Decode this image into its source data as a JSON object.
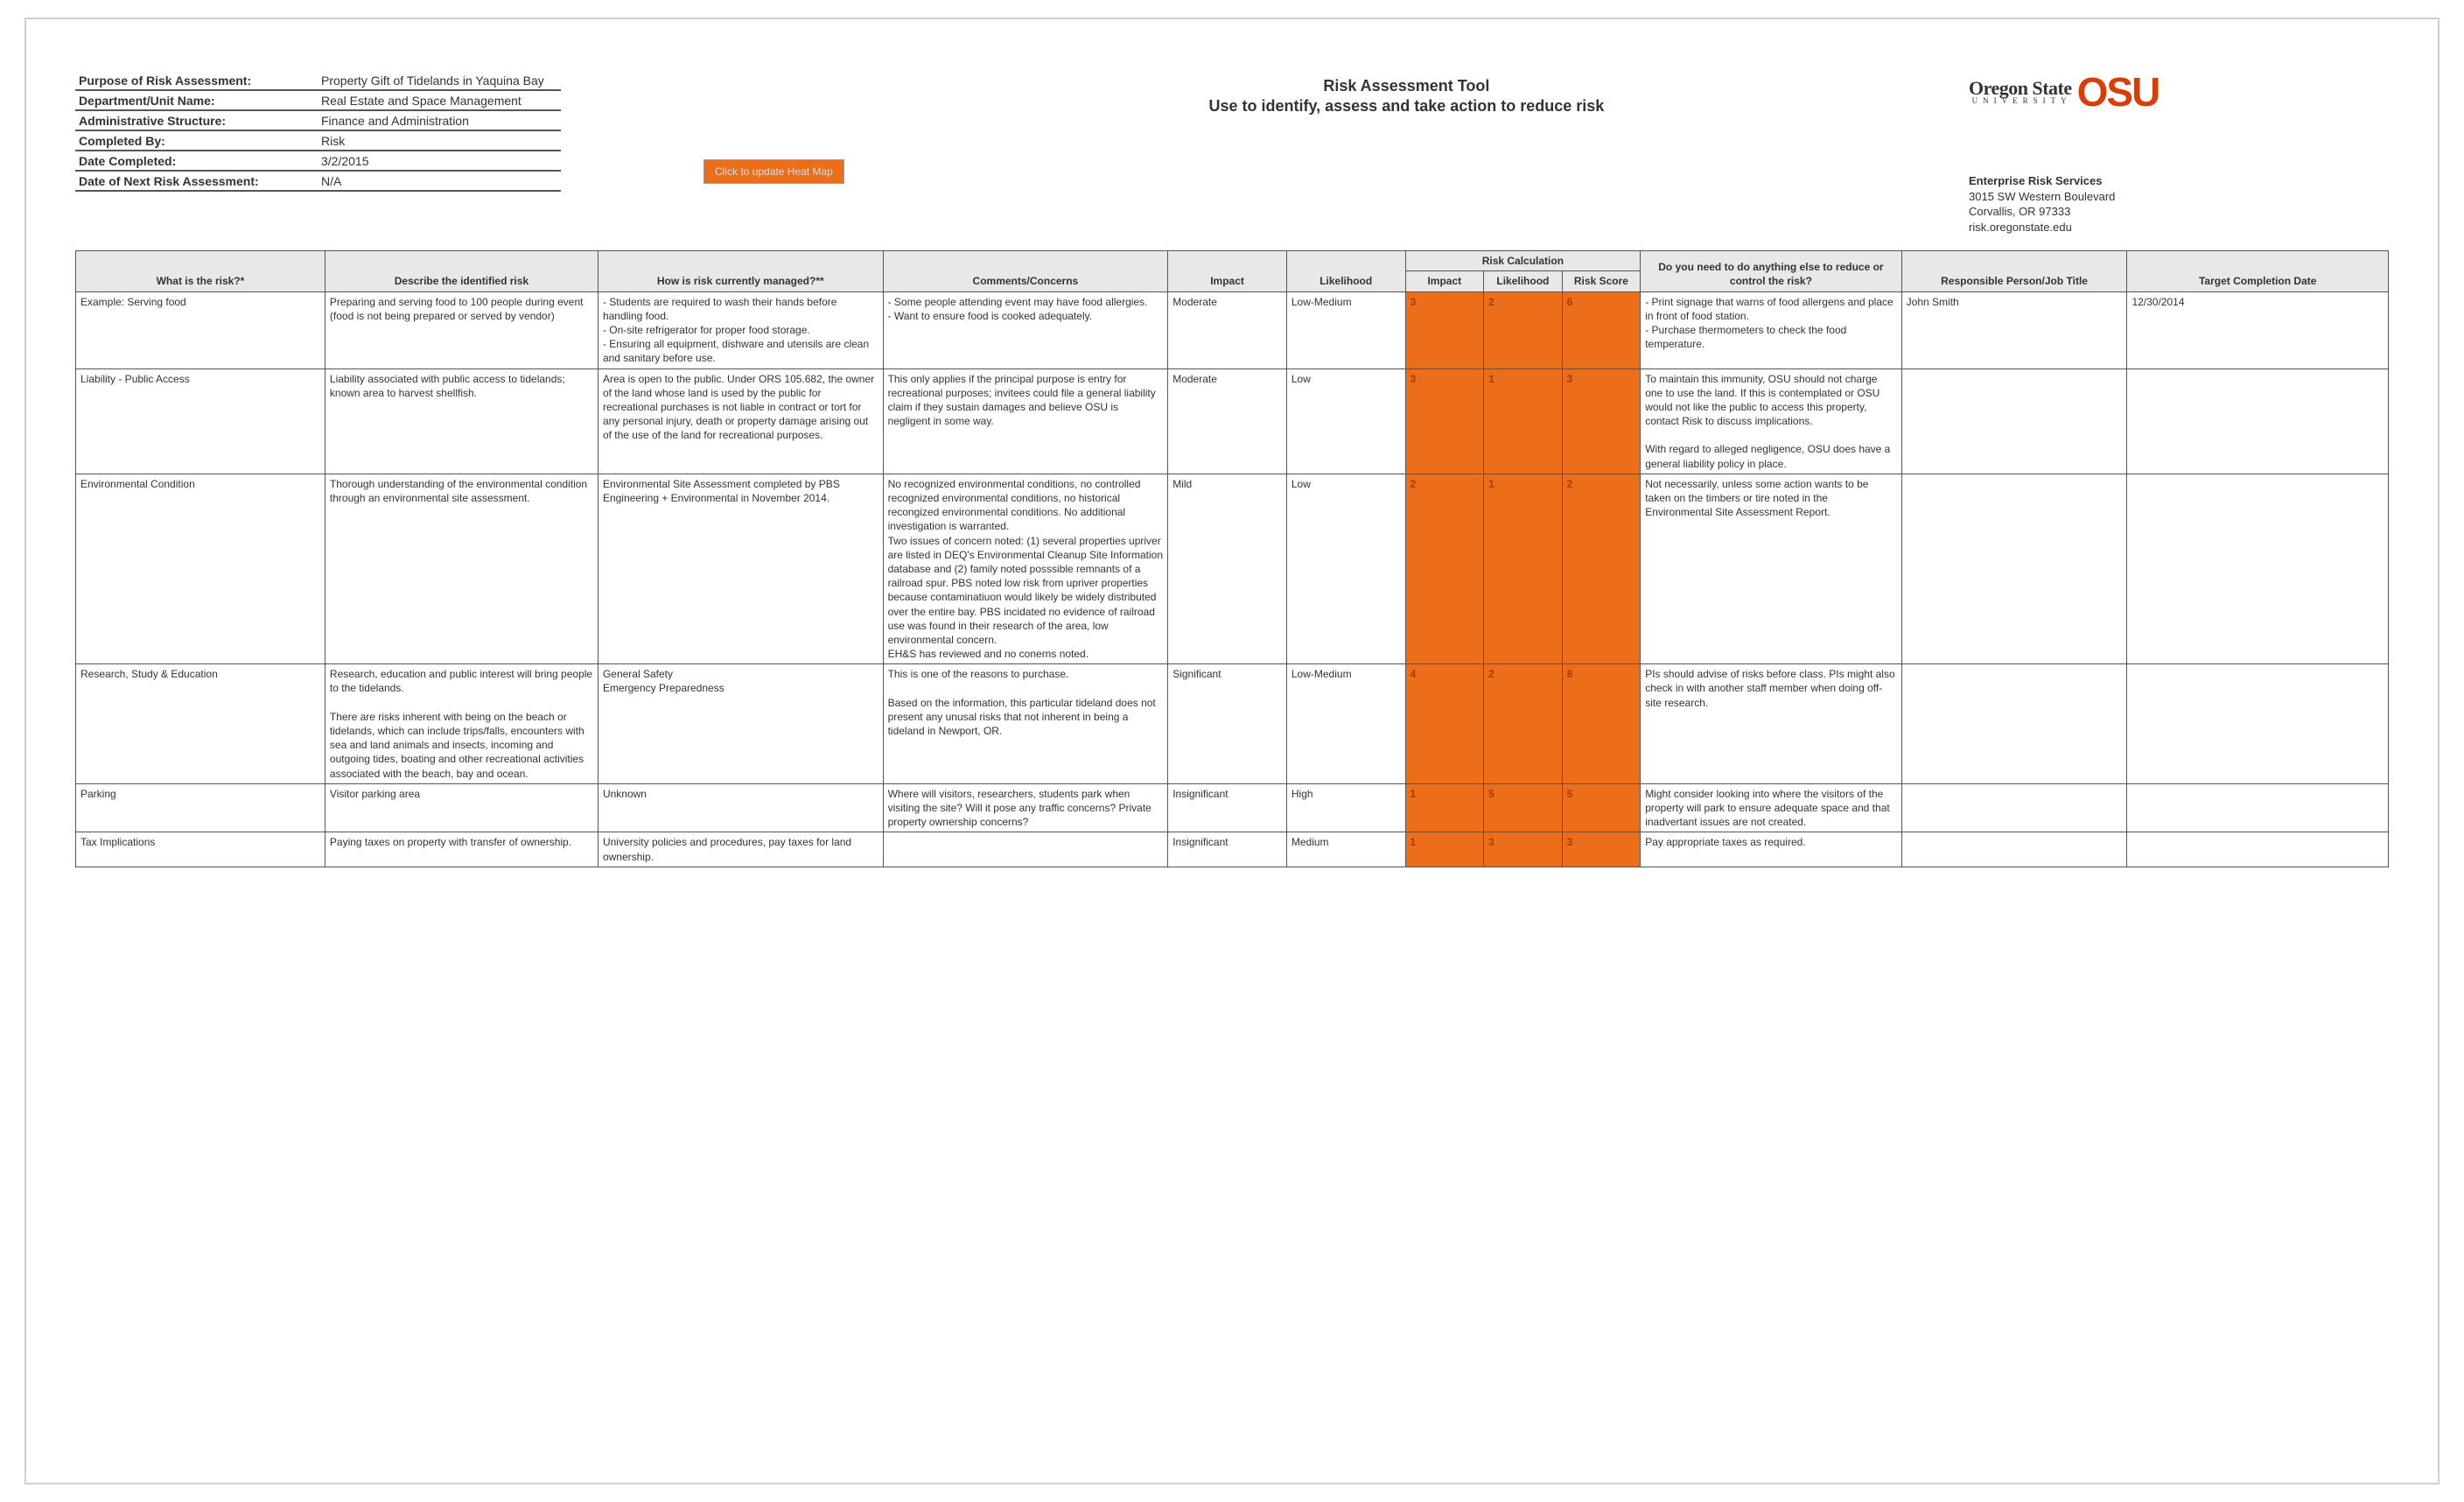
{
  "title": "Risk Assessment Tool",
  "subtitle": "Use to identify, assess and take action to reduce risk",
  "logo": {
    "line1": "Oregon State",
    "line2": "UNIVERSITY",
    "mark": "OSU"
  },
  "org": {
    "name": "Enterprise Risk Services",
    "addr": "3015 SW Western Boulevard",
    "city": "Corvallis, OR 97333",
    "url": "risk.oregonstate.edu"
  },
  "meta": {
    "rows": [
      {
        "label": "Purpose of Risk Assessment:",
        "value": "Property Gift of Tidelands in Yaquina Bay"
      },
      {
        "label": "Department/Unit Name:",
        "value": "Real Estate and Space Management"
      },
      {
        "label": "Administrative Structure:",
        "value": "Finance and Administration"
      },
      {
        "label": "Completed By:",
        "value": "Risk"
      },
      {
        "label": "Date Completed:",
        "value": "3/2/2015"
      },
      {
        "label": "Date of Next Risk Assessment:",
        "value": "N/A"
      }
    ]
  },
  "button": "Click to update Heat Map",
  "headers": {
    "group": "Risk Calculation",
    "cols": {
      "risk": "What is the risk?*",
      "desc": "Describe the identified risk",
      "manage": "How is risk currently managed?**",
      "comments": "Comments/Concerns",
      "impact": "Impact",
      "likelihood": "Likelihood",
      "c_impact": "Impact",
      "c_like": "Likelihood",
      "c_score": "Risk Score",
      "action": "Do you need to do anything else to reduce or control the risk?",
      "resp": "Responsible Person/Job Title",
      "date": "Target Completion Date"
    }
  },
  "rows": [
    {
      "risk": "Example: Serving food",
      "desc": "Preparing and serving food to 100 people during event\n(food is not being prepared or served by vendor)",
      "manage": "- Students are required to wash their hands before handling food.\n- On-site refrigerator for proper food storage.\n- Ensuring all equipment, dishware and utensils are clean and sanitary before use.",
      "comments": "- Some people attending event may have food allergies.\n- Want to ensure food is cooked adequately.",
      "impact": "Moderate",
      "likelihood": "Low-Medium",
      "c_impact": "3",
      "c_like": "2",
      "c_score": "6",
      "action": "- Print signage that warns of food allergens and place in front of food station.\n- Purchase thermometers to check the food temperature.",
      "resp": "John Smith",
      "date": "12/30/2014"
    },
    {
      "risk": "Liability - Public Access",
      "desc": "Liability associated with public access to tidelands; known area to harvest shellfish.",
      "manage": "Area is open to the public. Under ORS 105.682, the owner of the land whose land is used by the public for recreational purchases is not liable in contract or tort for any personal injury, death or property damage arising out of the use of the land for recreational purposes.",
      "comments": "This only applies if the principal purpose is entry for recreational purposes; invitees could file a general liability claim if they sustain damages and believe OSU is negligent in some way.",
      "impact": "Moderate",
      "likelihood": "Low",
      "c_impact": "3",
      "c_like": "1",
      "c_score": "3",
      "action": "To maintain this immunity, OSU should not charge one to use the land.  If this is contemplated or OSU would not like the public to access this property, contact Risk to discuss implications.\n\nWith regard to alleged negligence, OSU does have a general liability policy in place.",
      "resp": "",
      "date": ""
    },
    {
      "risk": "Environmental Condition",
      "desc": "Thorough understanding of the environmental condition through an environmental site assessment.",
      "manage": "Environmental Site Assessment completed by PBS Engineering + Environmental in November 2014.",
      "comments": "No recognized environmental conditions, no controlled recognized environmental conditions, no historical recongized environmental conditions.  No additional investigation is warranted.\nTwo issues of concern noted: (1) several properties upriver are listed in DEQ's Environmental Cleanup Site Information database and (2) family noted posssible remnants of a railroad spur. PBS noted low risk from upriver properties because contaminatiuon would likely be widely distributed over the entire bay. PBS incidated no evidence of railroad use was found in their research of the area, low environmental concern.\nEH&S has reviewed and no conerns noted.",
      "impact": "Mild",
      "likelihood": "Low",
      "c_impact": "2",
      "c_like": "1",
      "c_score": "2",
      "action": "Not necessarily, unless some action wants to be taken on the timbers or tire noted in the Environmental Site Assessment Report.",
      "resp": "",
      "date": ""
    },
    {
      "risk": "Research, Study & Education",
      "desc": "Research, education and public interest will bring people to the tidelands.\n\nThere are risks inherent with being on the beach or tidelands, which can include trips/falls, encounters with sea and land animals and insects, incoming and outgoing tides, boating and other recreational activities associated with the beach, bay and ocean.",
      "manage": "General Safety\nEmergency Preparedness",
      "comments": "This is one of the reasons to purchase.\n\nBased on the information, this particular tideland does not present any unusal risks that not inherent in being a tideland in Newport, OR.",
      "impact": "Significant",
      "likelihood": "Low-Medium",
      "c_impact": "4",
      "c_like": "2",
      "c_score": "8",
      "action": "PIs should advise of risks before class. PIs might also check in with another staff member when doing off-site research.",
      "resp": "",
      "date": ""
    },
    {
      "risk": "Parking",
      "desc": "Visitor parking area",
      "manage": "Unknown",
      "comments": "Where will visitors, researchers, students park when visiting the site?  Will it pose any traffic concerns?  Private property ownership concerns?",
      "impact": "Insignificant",
      "likelihood": "High",
      "c_impact": "1",
      "c_like": "5",
      "c_score": "5",
      "action": "Might consider looking into where the visitors of the property will park to ensure adequate space and that inadvertant issues are not created.",
      "resp": "",
      "date": ""
    },
    {
      "risk": "Tax Implications",
      "desc": "Paying taxes on property with transfer of ownership.",
      "manage": "University policies and procedures, pay taxes for land ownership.",
      "comments": "",
      "impact": "Insignificant",
      "likelihood": "Medium",
      "c_impact": "1",
      "c_like": "3",
      "c_score": "3",
      "action": "Pay appropriate taxes as required.",
      "resp": "",
      "date": ""
    }
  ],
  "colors": {
    "orange": "#ec6e1a",
    "logo_orange": "#d73f09",
    "header_bg": "#e8e8e8",
    "border": "#555555"
  }
}
